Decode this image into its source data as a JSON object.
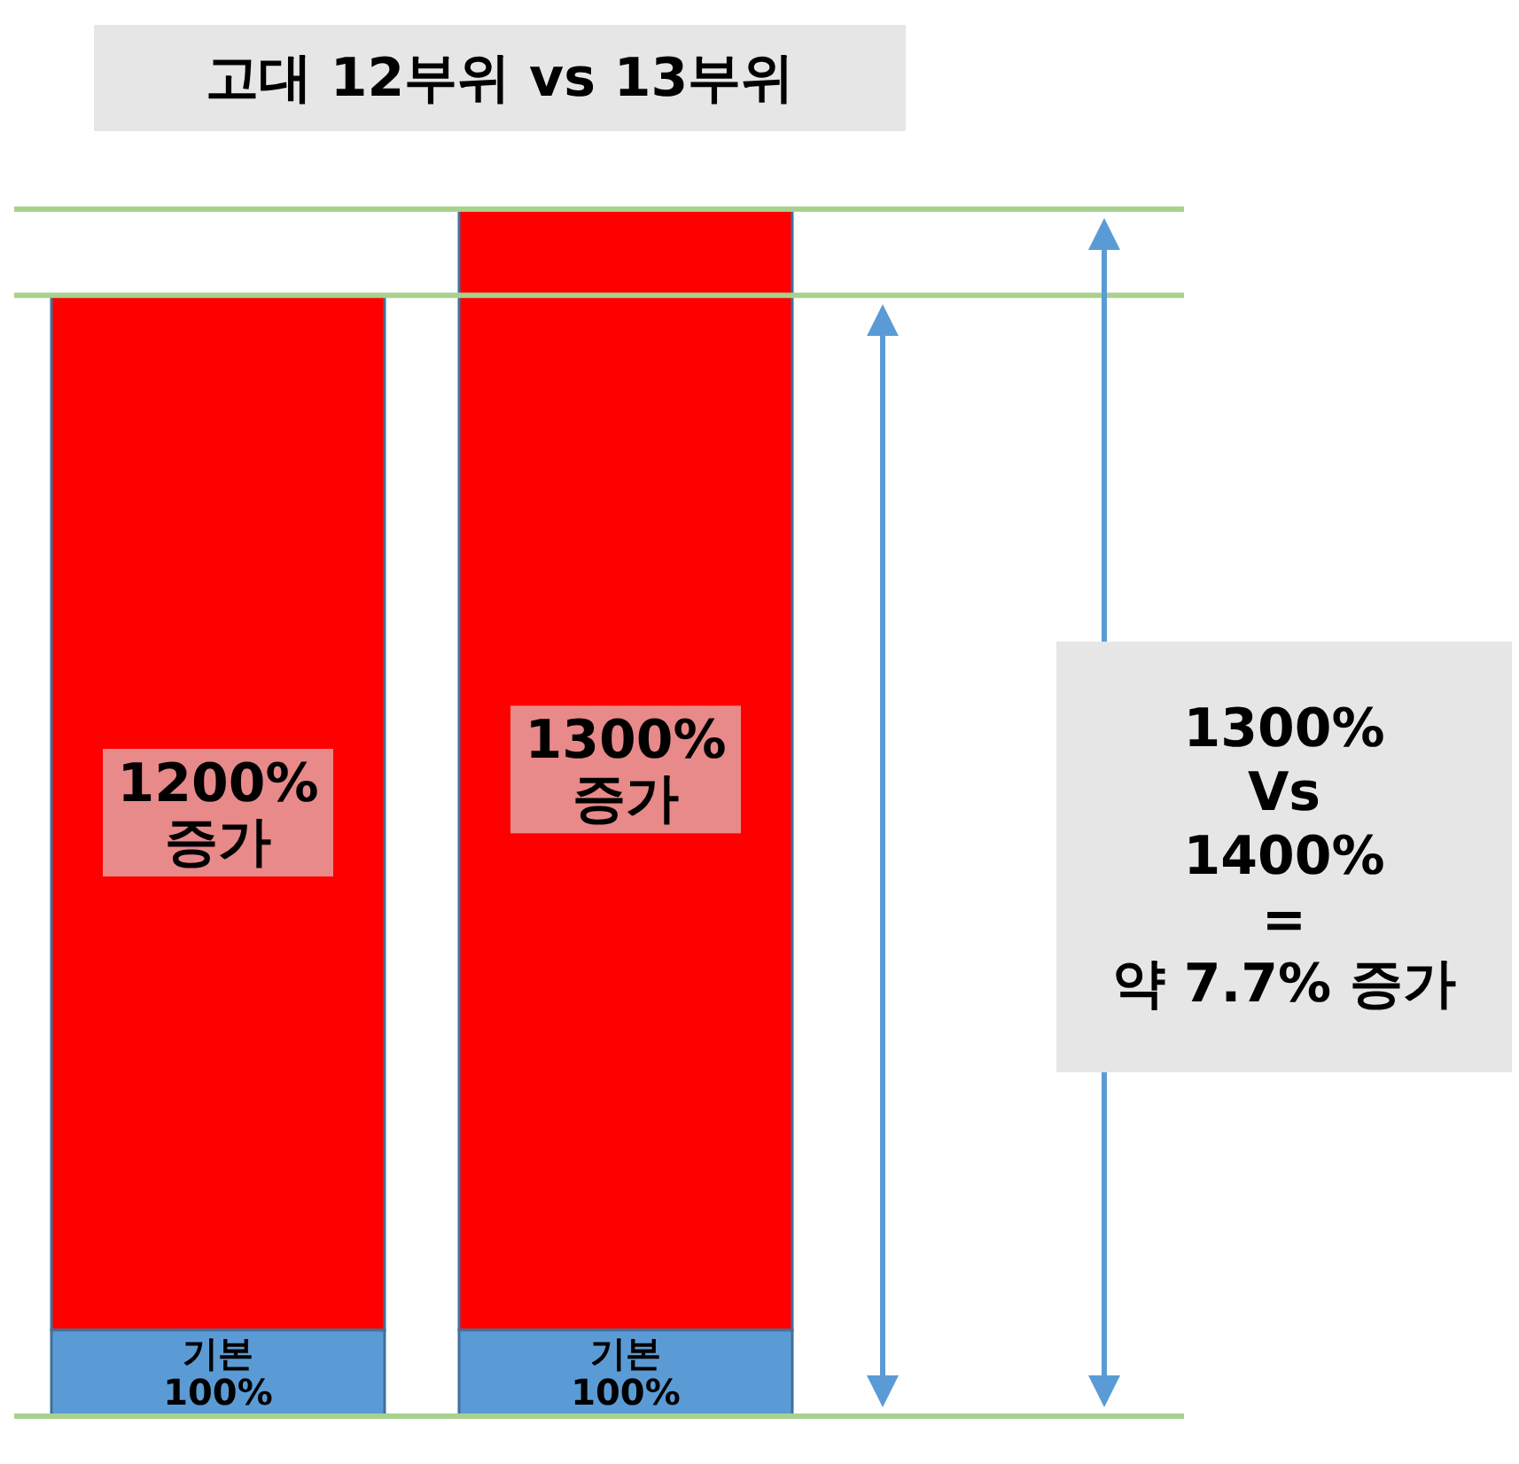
{
  "chart_data": {
    "type": "bar",
    "title": "고대 12부위 vs 13부위",
    "categories": [
      null,
      null
    ],
    "stacked": true,
    "series": [
      {
        "color": "#5b9bd5",
        "values": [
          100,
          100
        ],
        "value_labels": [
          "기본\n100%",
          "기본\n100%"
        ]
      },
      {
        "color": "#ff0000",
        "values": [
          1200,
          1300
        ],
        "value_labels": [
          "1200%\n증가",
          "1300%\n증가"
        ]
      }
    ],
    "ref_lines": [
      {
        "axis": "y",
        "value": 0,
        "color": "#a9d18e"
      },
      {
        "axis": "y",
        "value": 1300,
        "color": "#a9d18e"
      },
      {
        "axis": "y",
        "value": 1400,
        "color": "#a9d18e"
      }
    ],
    "annotations": [
      "1300%\nVs\n1400%\n=\n약 7.7% 증가"
    ]
  }
}
